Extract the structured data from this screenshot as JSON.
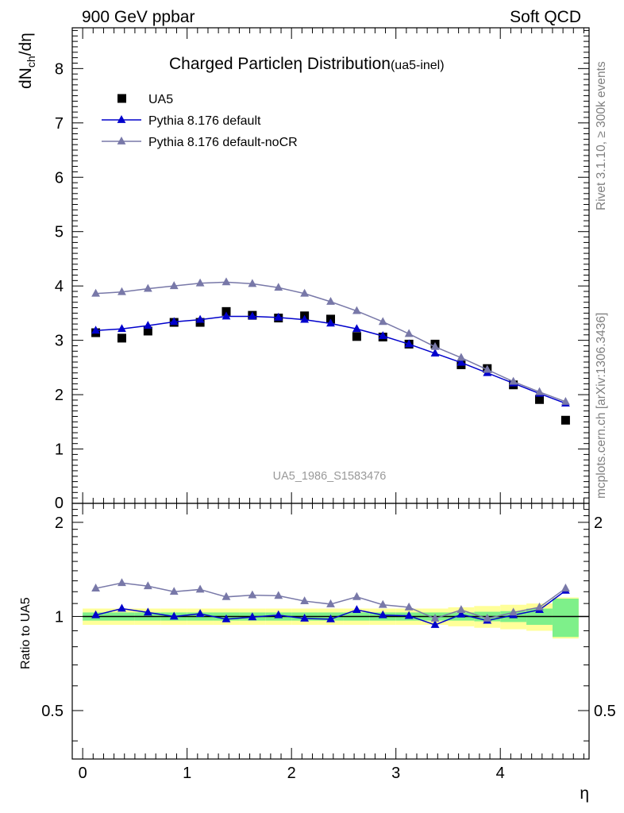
{
  "header": {
    "left": "900 GeV ppbar",
    "right": "Soft QCD"
  },
  "side_text": {
    "rivet": "Rivet 3.1.10, ≥ 300k events",
    "mcplots": "mcplots.cern.ch [arXiv:1306.3436]"
  },
  "chart_data": {
    "type": "scatter",
    "title": "Charged Particleη Distribution",
    "title_suffix": "(ua5-inel)",
    "analysis_label": "UA5_1986_S1583476",
    "xlabel": "η",
    "ylabel": "dN_ch/dη",
    "ratio_ylabel": "Ratio to UA5",
    "xlim": [
      -0.1,
      4.85
    ],
    "ylim": [
      0,
      8.75
    ],
    "ratio_ylim": [
      0.35,
      2.3
    ],
    "x_ticks": [
      "0",
      "1",
      "2",
      "3",
      "4"
    ],
    "y_ticks": [
      "1",
      "2",
      "3",
      "4",
      "5",
      "6",
      "7",
      "8"
    ],
    "y_tick_zero": "0",
    "ratio_ticks": [
      "0.5",
      "1",
      "2"
    ],
    "ratio_ticks_right": [
      "0.5",
      "2"
    ],
    "x": [
      0.125,
      0.375,
      0.625,
      0.875,
      1.125,
      1.375,
      1.625,
      1.875,
      2.125,
      2.375,
      2.625,
      2.875,
      3.125,
      3.375,
      3.625,
      3.875,
      4.125,
      4.375,
      4.625
    ],
    "series": [
      {
        "name": "UA5",
        "style": "data",
        "color": "#000000",
        "values": [
          3.14,
          3.04,
          3.17,
          3.33,
          3.33,
          3.53,
          3.46,
          3.41,
          3.45,
          3.39,
          3.07,
          3.06,
          2.93,
          2.93,
          2.55,
          2.48,
          2.18,
          1.91,
          1.53
        ]
      },
      {
        "name": "Pythia 8.176 default",
        "style": "mc",
        "color": "#0000cc",
        "values": [
          3.18,
          3.21,
          3.27,
          3.34,
          3.38,
          3.44,
          3.44,
          3.42,
          3.38,
          3.31,
          3.21,
          3.08,
          2.93,
          2.76,
          2.59,
          2.4,
          2.21,
          2.02,
          1.84
        ],
        "ratio": [
          1.01,
          1.06,
          1.03,
          1.0,
          1.02,
          0.98,
          0.995,
          1.01,
          0.985,
          0.98,
          1.05,
          1.01,
          1.005,
          0.94,
          1.015,
          0.97,
          1.01,
          1.05,
          1.21
        ]
      },
      {
        "name": "Pythia 8.176 default-noCR",
        "style": "mc",
        "color": "#7878a8",
        "values": [
          3.86,
          3.89,
          3.95,
          4.0,
          4.05,
          4.07,
          4.04,
          3.97,
          3.86,
          3.71,
          3.54,
          3.34,
          3.12,
          2.88,
          2.68,
          2.46,
          2.24,
          2.05,
          1.87
        ],
        "ratio": [
          1.23,
          1.28,
          1.25,
          1.2,
          1.22,
          1.155,
          1.17,
          1.165,
          1.12,
          1.095,
          1.155,
          1.09,
          1.07,
          0.985,
          1.05,
          0.985,
          1.03,
          1.07,
          1.23
        ]
      }
    ],
    "ratio_band_inner": [
      0.03,
      0.03,
      0.03,
      0.03,
      0.03,
      0.03,
      0.03,
      0.03,
      0.03,
      0.03,
      0.03,
      0.03,
      0.03,
      0.03,
      0.03,
      0.035,
      0.04,
      0.06,
      0.14
    ],
    "ratio_band_outer": [
      0.06,
      0.06,
      0.06,
      0.06,
      0.06,
      0.06,
      0.06,
      0.06,
      0.06,
      0.06,
      0.06,
      0.06,
      0.06,
      0.06,
      0.07,
      0.08,
      0.09,
      0.1,
      0.15
    ],
    "colors": {
      "band_inner": "#7ef08a",
      "band_outer": "#ffff99",
      "reference_line": "#000000"
    }
  }
}
